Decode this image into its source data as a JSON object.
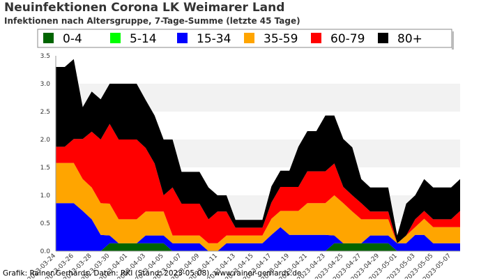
{
  "title": "Neuinfektionen Corona LK Weimarer Land",
  "subtitle": "Infektionen nach Altersgruppe, 7-Tage-Summe (letzte 45 Tage)",
  "credit": "Grafik: Rainer Gerhards, Daten: RKI (Stand: 2023-05-08), www.rainer-gerhards.de",
  "chart_data": {
    "type": "area",
    "stacked": true,
    "title": "Neuinfektionen Corona LK Weimarer Land",
    "subtitle": "Infektionen nach Altersgruppe, 7-Tage-Summe (letzte 45 Tage)",
    "ylim": [
      0,
      3.5
    ],
    "yticks": [
      "0.0",
      "0.5",
      "1.0",
      "1.5",
      "2.0",
      "2.5",
      "3.0",
      "3.5"
    ],
    "grid": "horizontal bands",
    "legend_position": "top",
    "x": [
      "2023-03-24",
      "2023-03-25",
      "2023-03-26",
      "2023-03-27",
      "2023-03-28",
      "2023-03-29",
      "2023-03-30",
      "2023-03-31",
      "2023-04-01",
      "2023-04-02",
      "2023-04-03",
      "2023-04-04",
      "2023-04-05",
      "2023-04-06",
      "2023-04-07",
      "2023-04-08",
      "2023-04-09",
      "2023-04-10",
      "2023-04-11",
      "2023-04-12",
      "2023-04-13",
      "2023-04-14",
      "2023-04-15",
      "2023-04-16",
      "2023-04-17",
      "2023-04-18",
      "2023-04-19",
      "2023-04-20",
      "2023-04-21",
      "2023-04-22",
      "2023-04-23",
      "2023-04-24",
      "2023-04-25",
      "2023-04-26",
      "2023-04-27",
      "2023-04-28",
      "2023-04-29",
      "2023-04-30",
      "2023-05-01",
      "2023-05-02",
      "2023-05-03",
      "2023-05-04",
      "2023-05-05",
      "2023-05-06",
      "2023-05-07",
      "2023-05-08"
    ],
    "xticks": [
      "2023-03-24",
      "2023-03-26",
      "2023-03-28",
      "2023-03-30",
      "2023-04-01",
      "2023-04-03",
      "2023-04-05",
      "2023-04-07",
      "2023-04-09",
      "2023-04-11",
      "2023-04-13",
      "2023-04-15",
      "2023-04-17",
      "2023-04-19",
      "2023-04-21",
      "2023-04-23",
      "2023-04-25",
      "2023-04-27",
      "2023-04-29",
      "2023-05-01",
      "2023-05-03",
      "2023-05-05",
      "2023-05-07"
    ],
    "series": [
      {
        "name": "0-4",
        "color": "#006400",
        "values": [
          0,
          0,
          0,
          0,
          0,
          0,
          0.14,
          0.14,
          0.14,
          0.14,
          0.14,
          0.14,
          0.14,
          0,
          0,
          0,
          0,
          0,
          0,
          0,
          0,
          0,
          0,
          0,
          0,
          0,
          0,
          0,
          0,
          0,
          0,
          0.14,
          0.14,
          0.14,
          0.14,
          0.14,
          0.14,
          0.14,
          0,
          0,
          0,
          0,
          0,
          0,
          0,
          0
        ]
      },
      {
        "name": "5-14",
        "color": "#00ff00",
        "values": [
          0,
          0,
          0,
          0,
          0,
          0,
          0,
          0,
          0,
          0,
          0,
          0,
          0,
          0,
          0,
          0,
          0,
          0,
          0,
          0,
          0,
          0,
          0,
          0,
          0,
          0,
          0,
          0,
          0,
          0,
          0,
          0,
          0,
          0,
          0,
          0,
          0,
          0,
          0,
          0,
          0,
          0,
          0,
          0,
          0,
          0
        ]
      },
      {
        "name": "15-34",
        "color": "#0000ff",
        "values": [
          0.86,
          0.86,
          0.86,
          0.72,
          0.57,
          0.29,
          0.14,
          0,
          0,
          0,
          0.14,
          0.14,
          0.14,
          0.14,
          0.14,
          0.14,
          0.14,
          0,
          0,
          0.14,
          0.14,
          0.14,
          0.14,
          0.14,
          0.29,
          0.43,
          0.29,
          0.29,
          0.29,
          0.29,
          0.29,
          0.14,
          0,
          0,
          0,
          0.14,
          0.14,
          0.14,
          0.14,
          0.14,
          0.29,
          0.29,
          0.14,
          0.14,
          0.14,
          0.14
        ]
      },
      {
        "name": "35-59",
        "color": "#ffa500",
        "values": [
          0.72,
          0.72,
          0.72,
          0.57,
          0.57,
          0.57,
          0.57,
          0.43,
          0.43,
          0.43,
          0.43,
          0.43,
          0.43,
          0.14,
          0.14,
          0.14,
          0.14,
          0.14,
          0.14,
          0.14,
          0.14,
          0.14,
          0.14,
          0.14,
          0.29,
          0.29,
          0.43,
          0.43,
          0.57,
          0.57,
          0.57,
          0.72,
          0.72,
          0.57,
          0.43,
          0.29,
          0.29,
          0.29,
          0,
          0.14,
          0.14,
          0.29,
          0.29,
          0.29,
          0.29,
          0.29
        ]
      },
      {
        "name": "60-79",
        "color": "#ff0000",
        "values": [
          0.29,
          0.29,
          0.43,
          0.72,
          1.0,
          1.14,
          1.43,
          1.43,
          1.43,
          1.43,
          1.14,
          0.86,
          0.29,
          0.86,
          0.57,
          0.57,
          0.57,
          0.43,
          0.57,
          0.43,
          0.14,
          0.14,
          0.14,
          0.14,
          0.29,
          0.43,
          0.43,
          0.43,
          0.57,
          0.57,
          0.57,
          0.57,
          0.29,
          0.29,
          0.29,
          0.14,
          0.14,
          0.14,
          0,
          0,
          0.14,
          0.14,
          0.14,
          0.14,
          0.14,
          0.29
        ]
      },
      {
        "name": "80+",
        "color": "#000000",
        "values": [
          1.43,
          1.43,
          1.43,
          0.57,
          0.72,
          0.72,
          0.72,
          1.0,
          1.0,
          1.0,
          0.86,
          0.86,
          1.0,
          0.86,
          0.57,
          0.57,
          0.57,
          0.57,
          0.29,
          0.29,
          0.14,
          0.14,
          0.14,
          0.14,
          0.29,
          0.29,
          0.29,
          0.72,
          0.72,
          0.72,
          1.0,
          0.86,
          0.86,
          0.86,
          0.43,
          0.43,
          0.43,
          0.43,
          0.14,
          0.57,
          0.43,
          0.57,
          0.57,
          0.57,
          0.57,
          0.57
        ]
      }
    ]
  }
}
